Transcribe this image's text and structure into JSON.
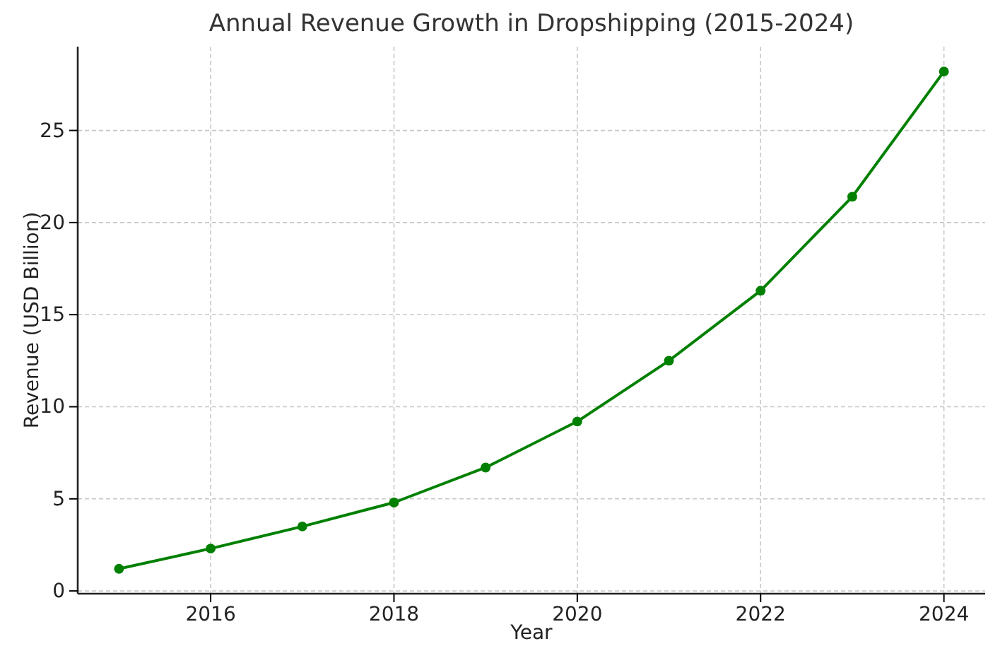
{
  "chart_data": {
    "type": "line",
    "title": "Annual Revenue Growth in Dropshipping (2015-2024)",
    "xlabel": "Year",
    "ylabel": "Revenue (USD Billion)",
    "x": [
      2015,
      2016,
      2017,
      2018,
      2019,
      2020,
      2021,
      2022,
      2023,
      2024
    ],
    "series": [
      {
        "color": "#008000",
        "values": [
          1.2,
          2.3,
          3.5,
          4.8,
          6.7,
          9.2,
          12.5,
          16.3,
          21.4,
          28.2
        ]
      }
    ],
    "xlim": [
      2014.55,
      2024.45
    ],
    "xticks": [
      2016,
      2018,
      2020,
      2022,
      2024
    ],
    "ylim": [
      -0.15,
      29.55
    ],
    "yticks": [
      0,
      5,
      10,
      15,
      20,
      25
    ],
    "grid": true,
    "marker": "circle",
    "line_style": "solid"
  }
}
